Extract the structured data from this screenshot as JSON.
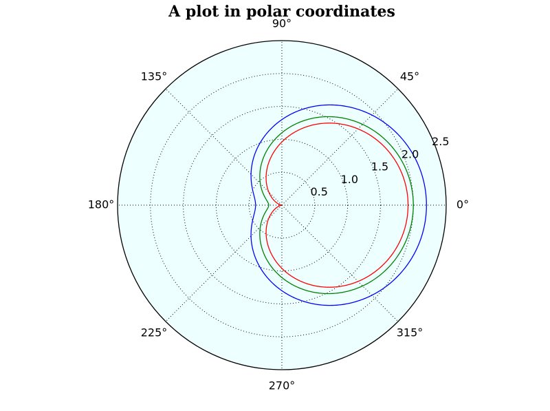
{
  "chart_data": {
    "type": "line",
    "projection": "polar",
    "title": "A plot in polar coordinates",
    "xlabel": "",
    "ylabel": "",
    "grid": true,
    "background_color": "#eeffff",
    "theta_ticks": [
      "0°",
      "45°",
      "90°",
      "135°",
      "180°",
      "225°",
      "270°",
      "315°"
    ],
    "theta_tick_degrees": [
      0,
      45,
      90,
      135,
      180,
      225,
      270,
      315
    ],
    "r_ticks": [
      "0.5",
      "1.0",
      "1.5",
      "2.0",
      "2.5"
    ],
    "r_tick_values": [
      0.5,
      1.0,
      1.5,
      2.0,
      2.5
    ],
    "r_tick_angle_degrees": 22.5,
    "rlim": [
      0,
      2.5
    ],
    "theta_range_degrees": [
      0,
      360
    ],
    "curve": "r(θ) = a + b·cos(θ)",
    "series": [
      {
        "color": "#0000ff",
        "a": 1.3,
        "b": 0.9
      },
      {
        "color": "#008000",
        "a": 1.1,
        "b": 0.9
      },
      {
        "color": "#ff0000",
        "a": 0.96,
        "b": 0.96
      }
    ]
  }
}
